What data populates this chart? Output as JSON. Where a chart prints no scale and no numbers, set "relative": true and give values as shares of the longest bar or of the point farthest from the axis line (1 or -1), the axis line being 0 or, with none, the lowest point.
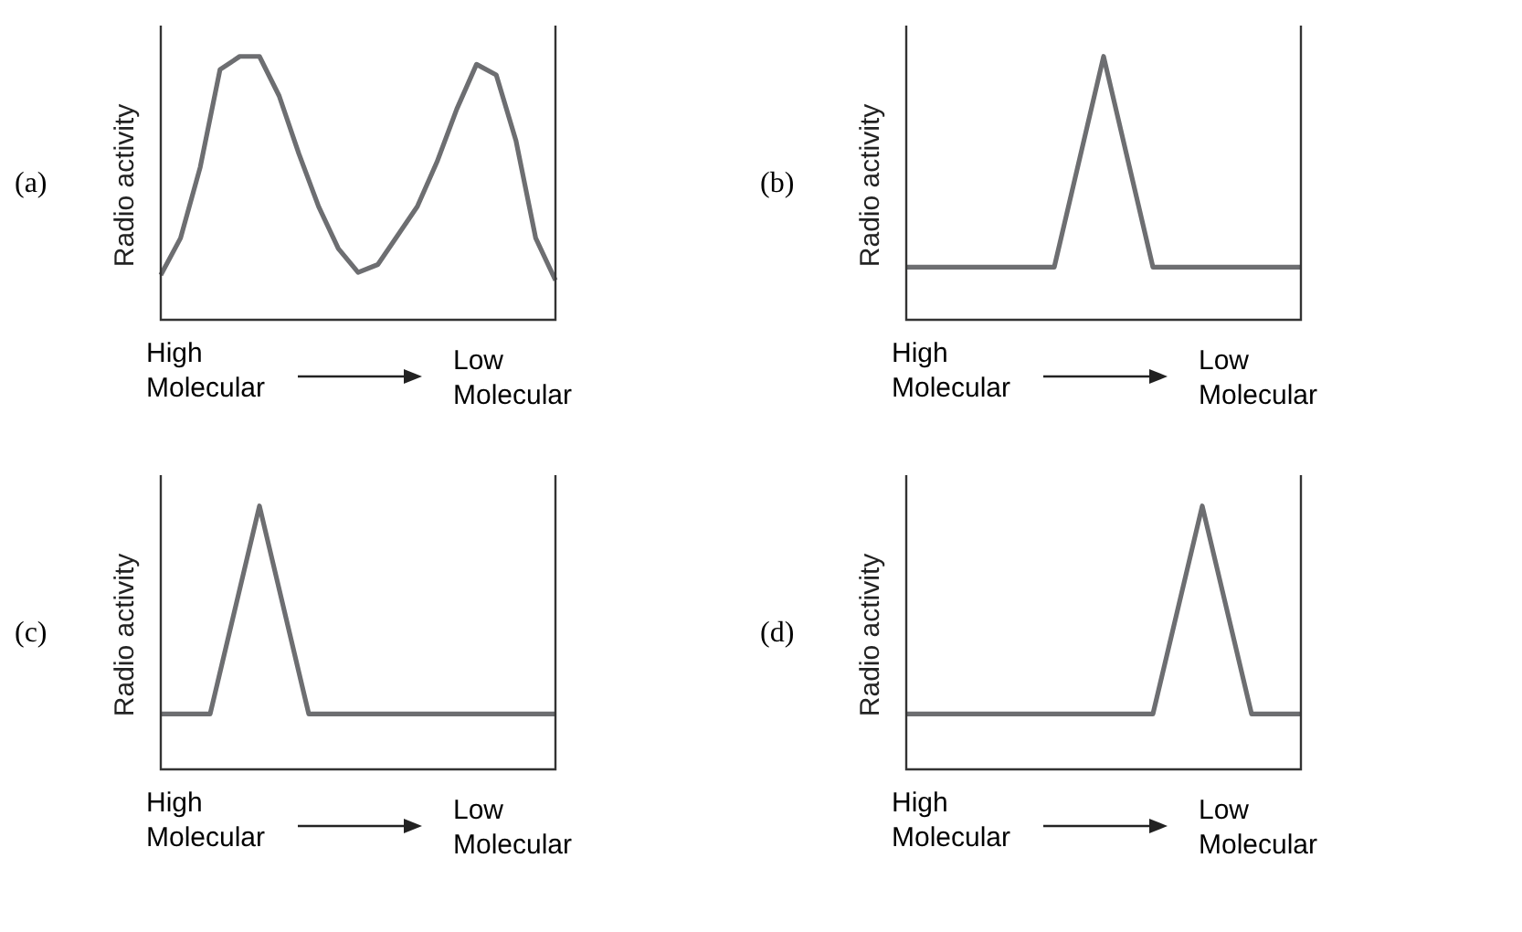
{
  "chart_data": [
    {
      "type": "line",
      "relative": true,
      "ylabel": "Radio activity",
      "color": "#6d6e71",
      "annotations": [
        "(a)",
        "High Molecular",
        "Low Molecular"
      ],
      "categories": [
        null,
        null,
        null,
        null,
        null,
        null,
        null,
        null,
        null,
        null,
        null,
        null,
        null,
        null,
        null,
        null,
        null,
        null,
        null,
        null,
        null
      ],
      "values": [
        0.17,
        0.31,
        0.58,
        0.95,
        1,
        1,
        0.85,
        0.63,
        0.43,
        0.27,
        0.18,
        0.21,
        0.32,
        0.43,
        0.6,
        0.8,
        0.97,
        0.93,
        0.68,
        0.31,
        0.15
      ]
    },
    {
      "type": "line",
      "relative": true,
      "ylabel": "Radio activity",
      "color": "#6d6e71",
      "annotations": [
        "(b)",
        "High Molecular",
        "Low Molecular"
      ],
      "categories": [
        null,
        null,
        null,
        null,
        null,
        null,
        null,
        null,
        null
      ],
      "values": [
        0.2,
        0.2,
        0.2,
        0.2,
        1,
        0.2,
        0.2,
        0.2,
        0.2
      ]
    },
    {
      "type": "line",
      "relative": true,
      "ylabel": "Radio activity",
      "color": "#6d6e71",
      "annotations": [
        "(c)",
        "High Molecular",
        "Low Molecular"
      ],
      "categories": [
        null,
        null,
        null,
        null,
        null,
        null,
        null,
        null,
        null
      ],
      "values": [
        0.21,
        0.21,
        1,
        0.21,
        0.21,
        0.21,
        0.21,
        0.21,
        0.21
      ]
    },
    {
      "type": "line",
      "relative": true,
      "ylabel": "Radio activity",
      "color": "#6d6e71",
      "annotations": [
        "(d)",
        "High Molecular",
        "Low Molecular"
      ],
      "categories": [
        null,
        null,
        null,
        null,
        null,
        null,
        null,
        null,
        null
      ],
      "values": [
        0.21,
        0.21,
        0.21,
        0.21,
        0.21,
        0.21,
        1,
        0.21,
        0.21
      ]
    }
  ]
}
